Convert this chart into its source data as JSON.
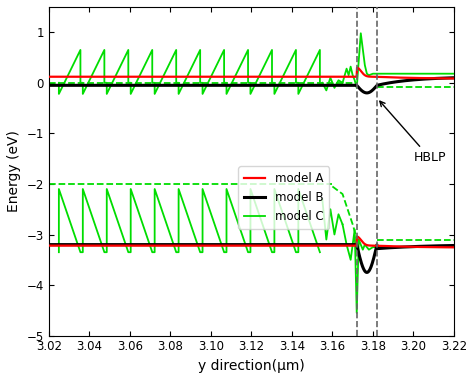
{
  "xlabel": "y direction(μm)",
  "ylabel": "Energy (eV)",
  "xlim": [
    3.02,
    3.22
  ],
  "ylim": [
    -5,
    1.5
  ],
  "yticks": [
    -5,
    -4,
    -3,
    -2,
    -1,
    0,
    1
  ],
  "xticks": [
    3.02,
    3.04,
    3.06,
    3.08,
    3.1,
    3.12,
    3.14,
    3.16,
    3.18,
    3.2,
    3.22
  ],
  "vline1": 3.172,
  "vline2": 3.182,
  "colors": {
    "model_A": "#ff0000",
    "model_B": "#000000",
    "model_C": "#00dd00",
    "vline": "#666666"
  }
}
